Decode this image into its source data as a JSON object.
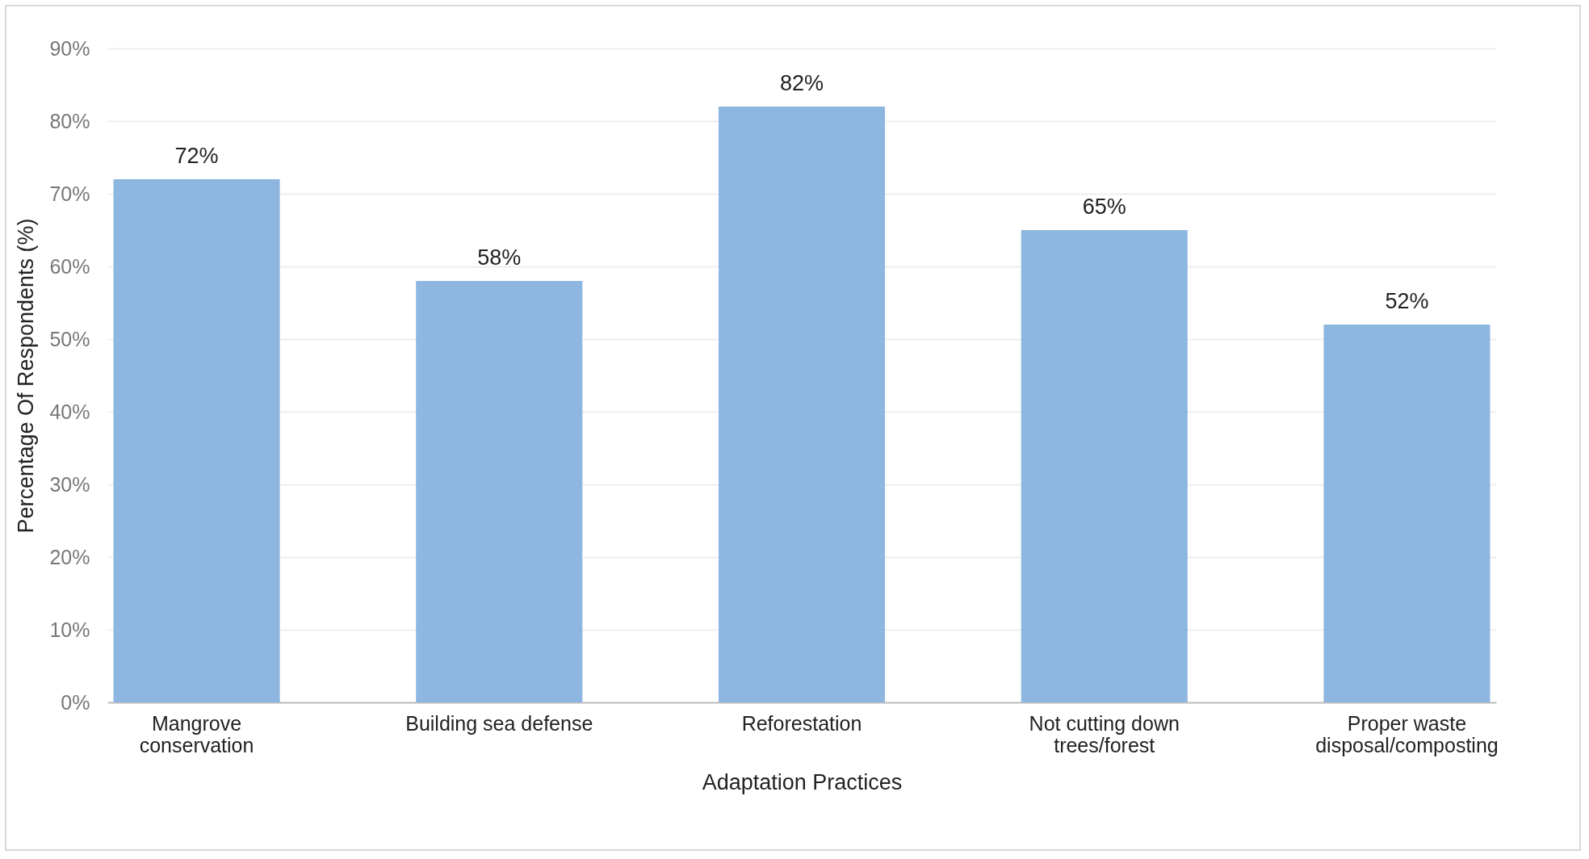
{
  "chart_data": {
    "type": "bar",
    "xlabel": "Adaptation Practices",
    "ylabel": "Percentage Of Respondents (%)",
    "categories": [
      "Mangrove conservation",
      "Building sea defense",
      "Reforestation",
      "Not cutting down trees/forest",
      "Proper waste disposal/composting"
    ],
    "values": [
      72,
      58,
      82,
      65,
      52
    ],
    "value_labels": [
      "72%",
      "58%",
      "82%",
      "65%",
      "52%"
    ],
    "color": "#8db6e0",
    "ylim": [
      0,
      90
    ],
    "yticks": [
      {
        "value": 0,
        "label": "0%"
      },
      {
        "value": 10,
        "label": "10%"
      },
      {
        "value": 20,
        "label": "20%"
      },
      {
        "value": 30,
        "label": "30%"
      },
      {
        "value": 40,
        "label": "40%"
      },
      {
        "value": 50,
        "label": "50%"
      },
      {
        "value": 60,
        "label": "60%"
      },
      {
        "value": 70,
        "label": "70%"
      },
      {
        "value": 80,
        "label": "80%"
      },
      {
        "value": 90,
        "label": "90%"
      }
    ],
    "grid": "y"
  }
}
